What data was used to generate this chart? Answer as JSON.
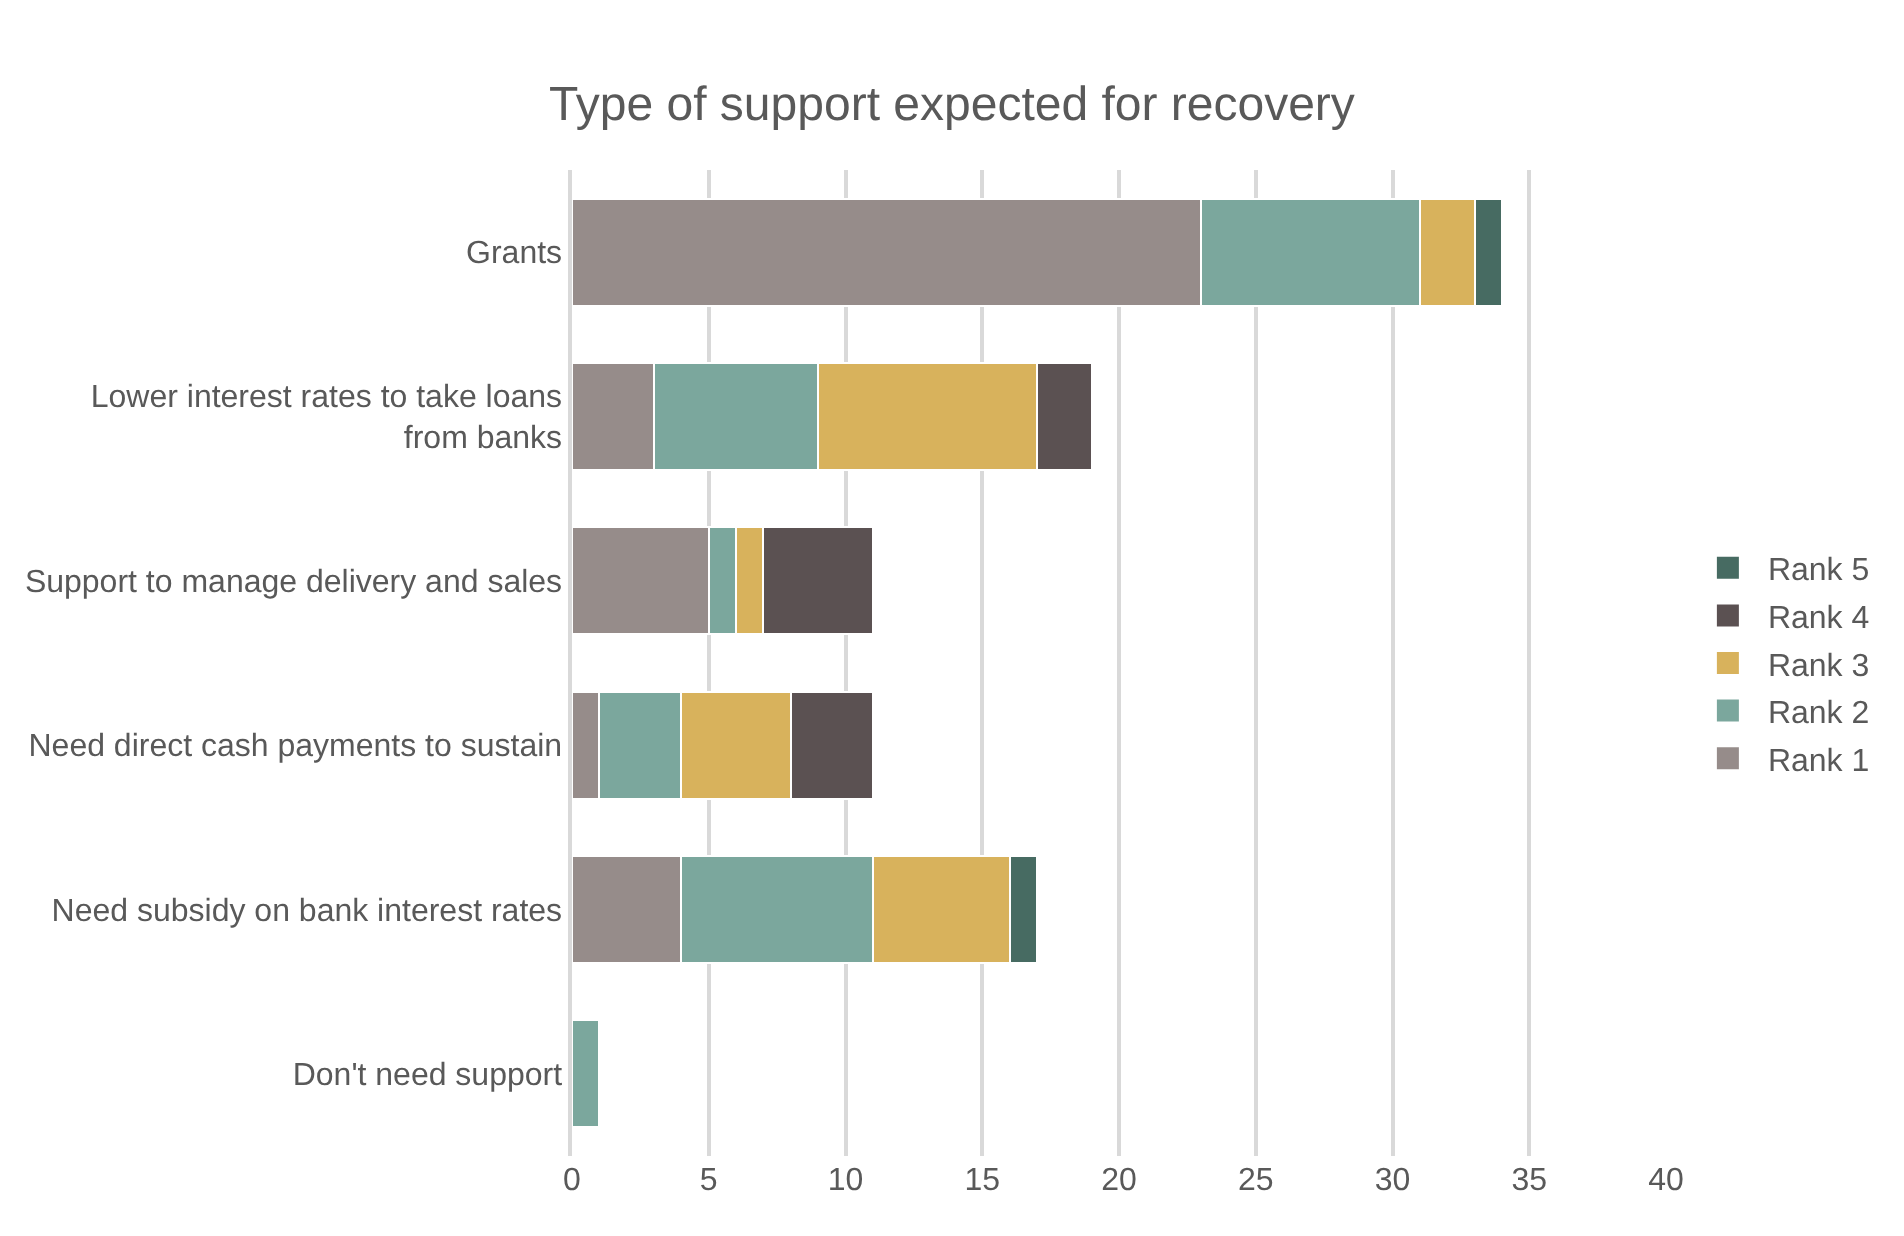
{
  "chart_data": {
    "type": "bar",
    "orientation": "horizontal",
    "stacked": true,
    "title": "Type of support expected for recovery",
    "categories": [
      "Grants",
      "Lower interest rates to take loans from banks",
      "Support to manage delivery and sales",
      "Need direct cash payments to sustain",
      "Need subsidy on bank interest rates",
      "Don't need support"
    ],
    "series": [
      {
        "name": "Rank 1",
        "color": "#968c8a",
        "values": [
          23,
          3,
          5,
          1,
          4,
          null
        ]
      },
      {
        "name": "Rank 2",
        "color": "#7ba79d",
        "values": [
          8,
          6,
          1,
          3,
          7,
          1
        ]
      },
      {
        "name": "Rank 3",
        "color": "#d8b25c",
        "values": [
          2,
          8,
          1,
          4,
          5,
          null
        ]
      },
      {
        "name": "Rank 4",
        "color": "#5b5152",
        "values": [
          null,
          2,
          4,
          3,
          null,
          null
        ]
      },
      {
        "name": "Rank 5",
        "color": "#476b62",
        "values": [
          1,
          null,
          null,
          null,
          1,
          null
        ]
      }
    ],
    "xlim": [
      0,
      40
    ],
    "xticks": [
      0,
      5,
      10,
      15,
      20,
      25,
      30,
      35,
      40
    ],
    "grid": "x",
    "legend": "right"
  }
}
